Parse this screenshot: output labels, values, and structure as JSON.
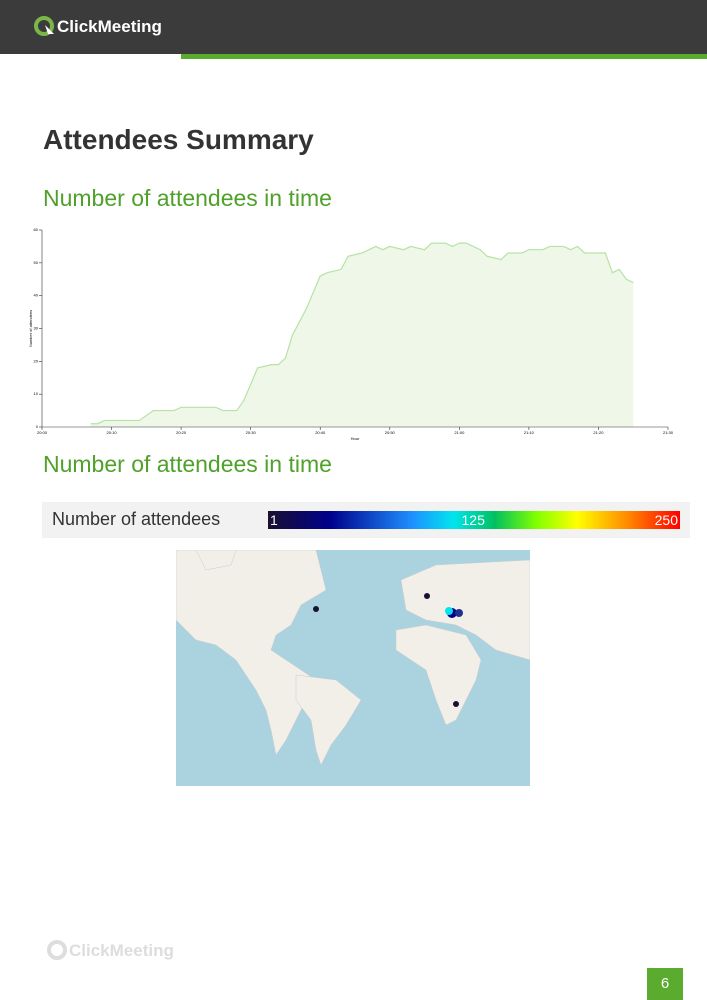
{
  "header": {
    "logo": "ClickMeeting"
  },
  "title": "Attendees Summary",
  "sections": [
    {
      "heading": "Number of attendees in time"
    },
    {
      "heading": "Number of attendees in time"
    }
  ],
  "chart_data": {
    "type": "area",
    "x_label": "Hour",
    "y_label": "Number of attendees",
    "color": "#b6e3a4",
    "fill": "#eef7e8",
    "x": [
      7,
      8,
      9,
      14,
      16,
      19,
      20,
      25,
      26,
      28,
      29,
      30,
      31,
      33,
      34,
      35,
      36,
      37,
      38,
      39,
      40,
      41,
      43,
      44,
      46,
      47,
      48,
      49,
      50,
      52,
      53,
      55,
      56,
      58,
      59,
      60,
      61,
      63,
      64,
      66,
      67,
      69,
      70,
      72,
      73,
      75,
      76,
      77,
      78,
      80,
      81,
      82,
      83,
      84,
      85
    ],
    "values": [
      1,
      1,
      2,
      2,
      5,
      5,
      6,
      6,
      5,
      5,
      8,
      13,
      18,
      19,
      19,
      21,
      28,
      32,
      36,
      41,
      46,
      47,
      48,
      52,
      53,
      54,
      55,
      54,
      55,
      54,
      55,
      54,
      56,
      56,
      55,
      56,
      56,
      54,
      52,
      51,
      53,
      53,
      54,
      54,
      55,
      55,
      54,
      55,
      53,
      53,
      53,
      47,
      48,
      45,
      44
    ],
    "xlim": [
      0,
      90
    ],
    "ylim": [
      0,
      60
    ],
    "xticks": [
      {
        "value": 0,
        "label": "20:00"
      },
      {
        "value": 10,
        "label": "20:10"
      },
      {
        "value": 20,
        "label": "20:20"
      },
      {
        "value": 30,
        "label": "20:30"
      },
      {
        "value": 40,
        "label": "20:40"
      },
      {
        "value": 50,
        "label": "20:50"
      },
      {
        "value": 60,
        "label": "21:00"
      },
      {
        "value": 70,
        "label": "21:10"
      },
      {
        "value": 80,
        "label": "21:20"
      },
      {
        "value": 90,
        "label": "21:30"
      }
    ],
    "yticks": [
      0,
      10,
      20,
      30,
      40,
      50,
      60
    ]
  },
  "colorbar": {
    "label": "Number of attendees",
    "range": [
      1,
      250
    ],
    "ticks": [
      1,
      125,
      250
    ]
  },
  "footer": {
    "logo": "ClickMeeting",
    "page": "6"
  }
}
